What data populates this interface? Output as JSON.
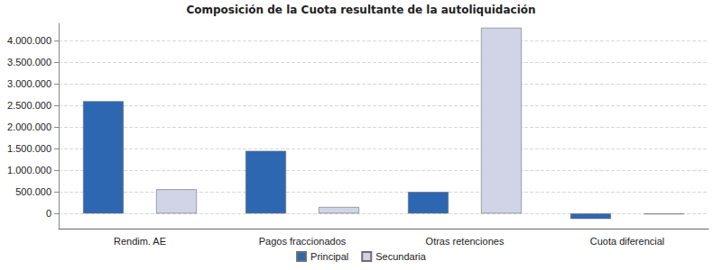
{
  "chart_data": {
    "type": "bar",
    "title": "Composición de la Cuota resultante de la autoliquidación",
    "categories": [
      "Rendim. AE",
      "Pagos fraccionados",
      "Otras retenciones",
      "Cuota diferencial"
    ],
    "series": [
      {
        "name": "Principal",
        "color": "#2e67b1",
        "values": [
          2600000,
          1450000,
          500000,
          -125000
        ]
      },
      {
        "name": "Secundaria",
        "color": "#d0d4e6",
        "values": [
          560000,
          150000,
          4300000,
          -20000
        ]
      }
    ],
    "ylim": [
      -350000,
      4400000
    ],
    "yticks": [
      0,
      {
        "value": 500000,
        "label": "500.000"
      },
      {
        "value": 1000000,
        "label": "1.000.000"
      },
      {
        "value": 1500000,
        "label": "1.500.000"
      },
      {
        "value": 2000000,
        "label": "2.000.000"
      },
      {
        "value": 2500000,
        "label": "2.500.000"
      },
      {
        "value": 3000000,
        "label": "3.000.000"
      },
      {
        "value": 3500000,
        "label": "3.500.000"
      },
      {
        "value": 4000000,
        "label": "4.000.000"
      }
    ],
    "grid": true,
    "legend": "bottom"
  }
}
